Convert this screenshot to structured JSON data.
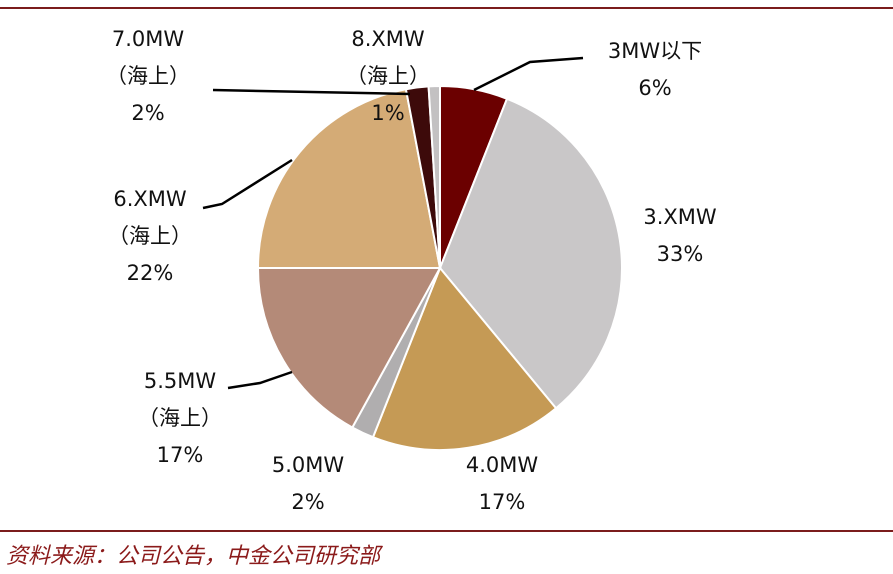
{
  "chart_data": {
    "type": "pie",
    "slices": [
      {
        "name_lines": [
          "3MW以下"
        ],
        "percent_label": "6%",
        "value": 6,
        "color": "#6b0000"
      },
      {
        "name_lines": [
          "3.XMW"
        ],
        "percent_label": "33%",
        "value": 33,
        "color": "#c9c7c8"
      },
      {
        "name_lines": [
          "4.0MW"
        ],
        "percent_label": "17%",
        "value": 17,
        "color": "#c59a55"
      },
      {
        "name_lines": [
          "5.0MW"
        ],
        "percent_label": "2%",
        "value": 2,
        "color": "#b0aeaf"
      },
      {
        "name_lines": [
          "5.5MW",
          "（海上）"
        ],
        "percent_label": "17%",
        "value": 17,
        "color": "#b48a78"
      },
      {
        "name_lines": [
          "6.XMW",
          "（海上）"
        ],
        "percent_label": "22%",
        "value": 22,
        "color": "#d4ab76"
      },
      {
        "name_lines": [
          "7.0MW",
          "（海上）"
        ],
        "percent_label": "2%",
        "value": 2,
        "color": "#3d0a0a"
      },
      {
        "name_lines": [
          "8.XMW",
          "（海上）"
        ],
        "percent_label": "1%",
        "value": 1,
        "color": "#c3c1c2"
      }
    ]
  },
  "source_text": "资料来源：公司公告，中金公司研究部",
  "colors": {
    "rule": "#7b1c1c",
    "source_text": "#8b1a1a"
  }
}
